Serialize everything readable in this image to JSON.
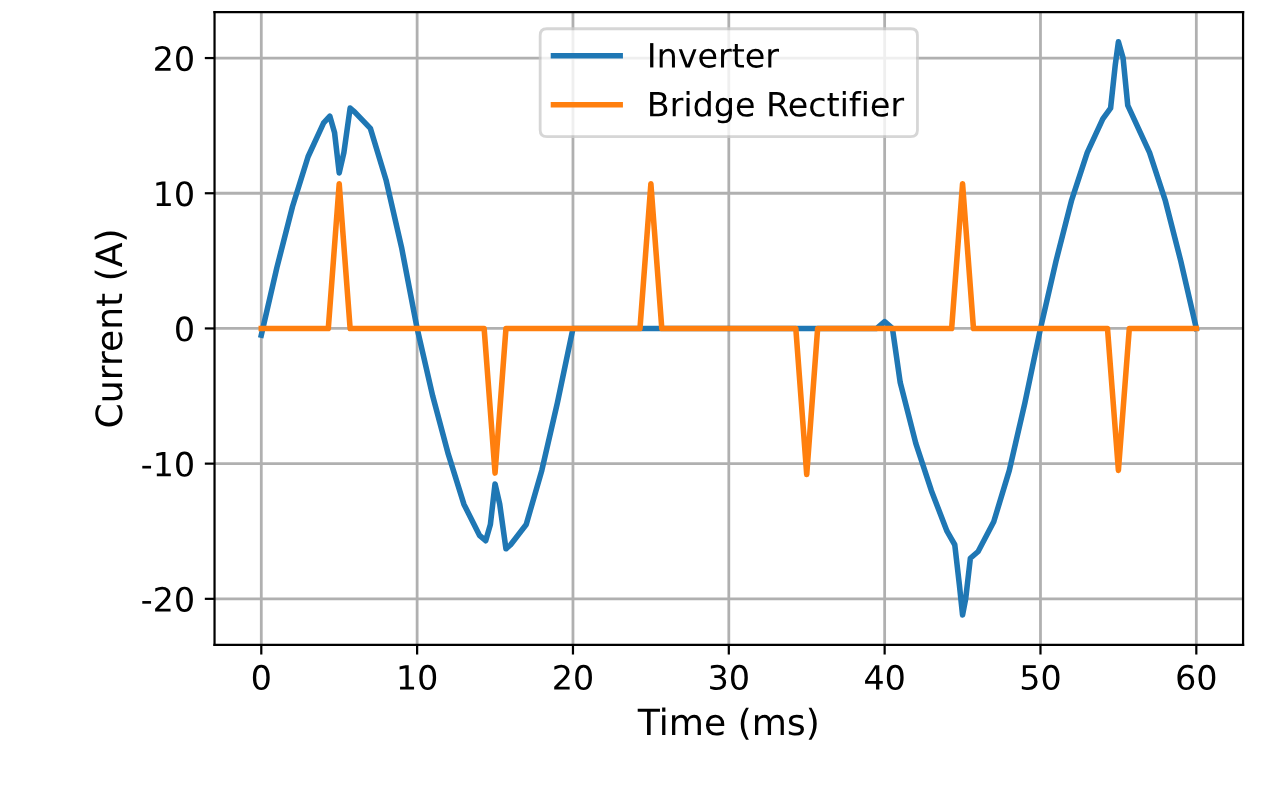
{
  "chart_data": {
    "type": "line",
    "xlabel": "Time (ms)",
    "ylabel": "Current (A)",
    "xlim": [
      -3,
      63
    ],
    "ylim": [
      -23.4,
      23.4
    ],
    "xticks": [
      0,
      10,
      20,
      30,
      40,
      50,
      60
    ],
    "yticks": [
      -20,
      -10,
      0,
      10,
      20
    ],
    "grid": true,
    "legend": "top",
    "marker": "none",
    "line_style": "solid",
    "series": [
      {
        "name": "Inverter",
        "color": "#1f77b4",
        "x": [
          0,
          1,
          2,
          3,
          4,
          4.4,
          4.7,
          5,
          5.3,
          5.7,
          6,
          7,
          8,
          9,
          10,
          11,
          12,
          13,
          14,
          14.4,
          14.7,
          15,
          15.3,
          15.7,
          16,
          17,
          18,
          19,
          20,
          30,
          39.5,
          40,
          40.5,
          41,
          42,
          43,
          44,
          44.5,
          44.8,
          45,
          45.2,
          45.5,
          46,
          47,
          48,
          49,
          50,
          51,
          52,
          53,
          54,
          54.5,
          54.8,
          55,
          55.3,
          55.6,
          56,
          57,
          58,
          59,
          60
        ],
        "values": [
          -0.5,
          4.5,
          9,
          12.7,
          15.2,
          15.7,
          14.5,
          11.5,
          13,
          16.3,
          16,
          14.8,
          11,
          6,
          0,
          -5,
          -9.3,
          -13,
          -15.3,
          -15.7,
          -14.5,
          -11.5,
          -13,
          -16.3,
          -16,
          -14.5,
          -10.5,
          -5.5,
          0,
          0,
          0,
          0.5,
          0,
          -4,
          -8.5,
          -12,
          -15,
          -16,
          -19,
          -21.2,
          -20,
          -17,
          -16.5,
          -14.3,
          -10.5,
          -5.5,
          0,
          5,
          9.5,
          13,
          15.5,
          16.3,
          19.5,
          21.2,
          20,
          16.5,
          15.5,
          13,
          9.5,
          5,
          0
        ]
      },
      {
        "name": "Bridge Rectifier",
        "color": "#ff7f0e",
        "x": [
          0,
          4.3,
          5,
          5.7,
          14.3,
          15,
          15.7,
          24.3,
          25,
          25.7,
          34.3,
          35,
          35.7,
          44.3,
          45,
          45.7,
          54.3,
          55,
          55.7,
          60
        ],
        "values": [
          0,
          0,
          10.7,
          0,
          0,
          -10.7,
          0,
          0,
          10.7,
          0,
          0,
          -10.8,
          0,
          0,
          10.7,
          0,
          0,
          -10.5,
          0,
          0
        ]
      }
    ]
  }
}
